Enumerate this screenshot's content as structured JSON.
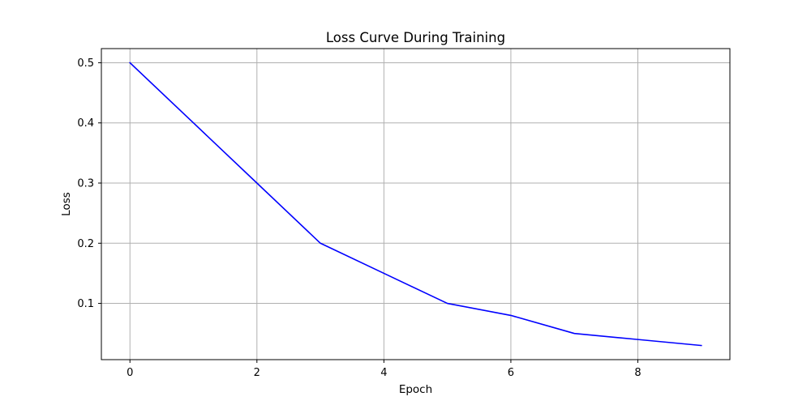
{
  "chart_data": {
    "type": "line",
    "title": "Loss Curve During Training",
    "xlabel": "Epoch",
    "ylabel": "Loss",
    "x": [
      0,
      1,
      2,
      3,
      4,
      5,
      6,
      7,
      8,
      9
    ],
    "series": [
      {
        "values": [
          0.5,
          0.4,
          0.3,
          0.2,
          0.15,
          0.1,
          0.08,
          0.05,
          0.04,
          0.03
        ],
        "color": "#0000ff"
      }
    ],
    "xlim": [
      -0.45,
      9.45
    ],
    "ylim": [
      0.0065,
      0.5235
    ],
    "xticks": [
      0,
      2,
      4,
      6,
      8
    ],
    "xtick_labels": [
      "0",
      "2",
      "4",
      "6",
      "8"
    ],
    "yticks": [
      0.1,
      0.2,
      0.3,
      0.4,
      0.5
    ],
    "ytick_labels": [
      "0.1",
      "0.2",
      "0.3",
      "0.4",
      "0.5"
    ],
    "grid": true,
    "legend": false
  }
}
